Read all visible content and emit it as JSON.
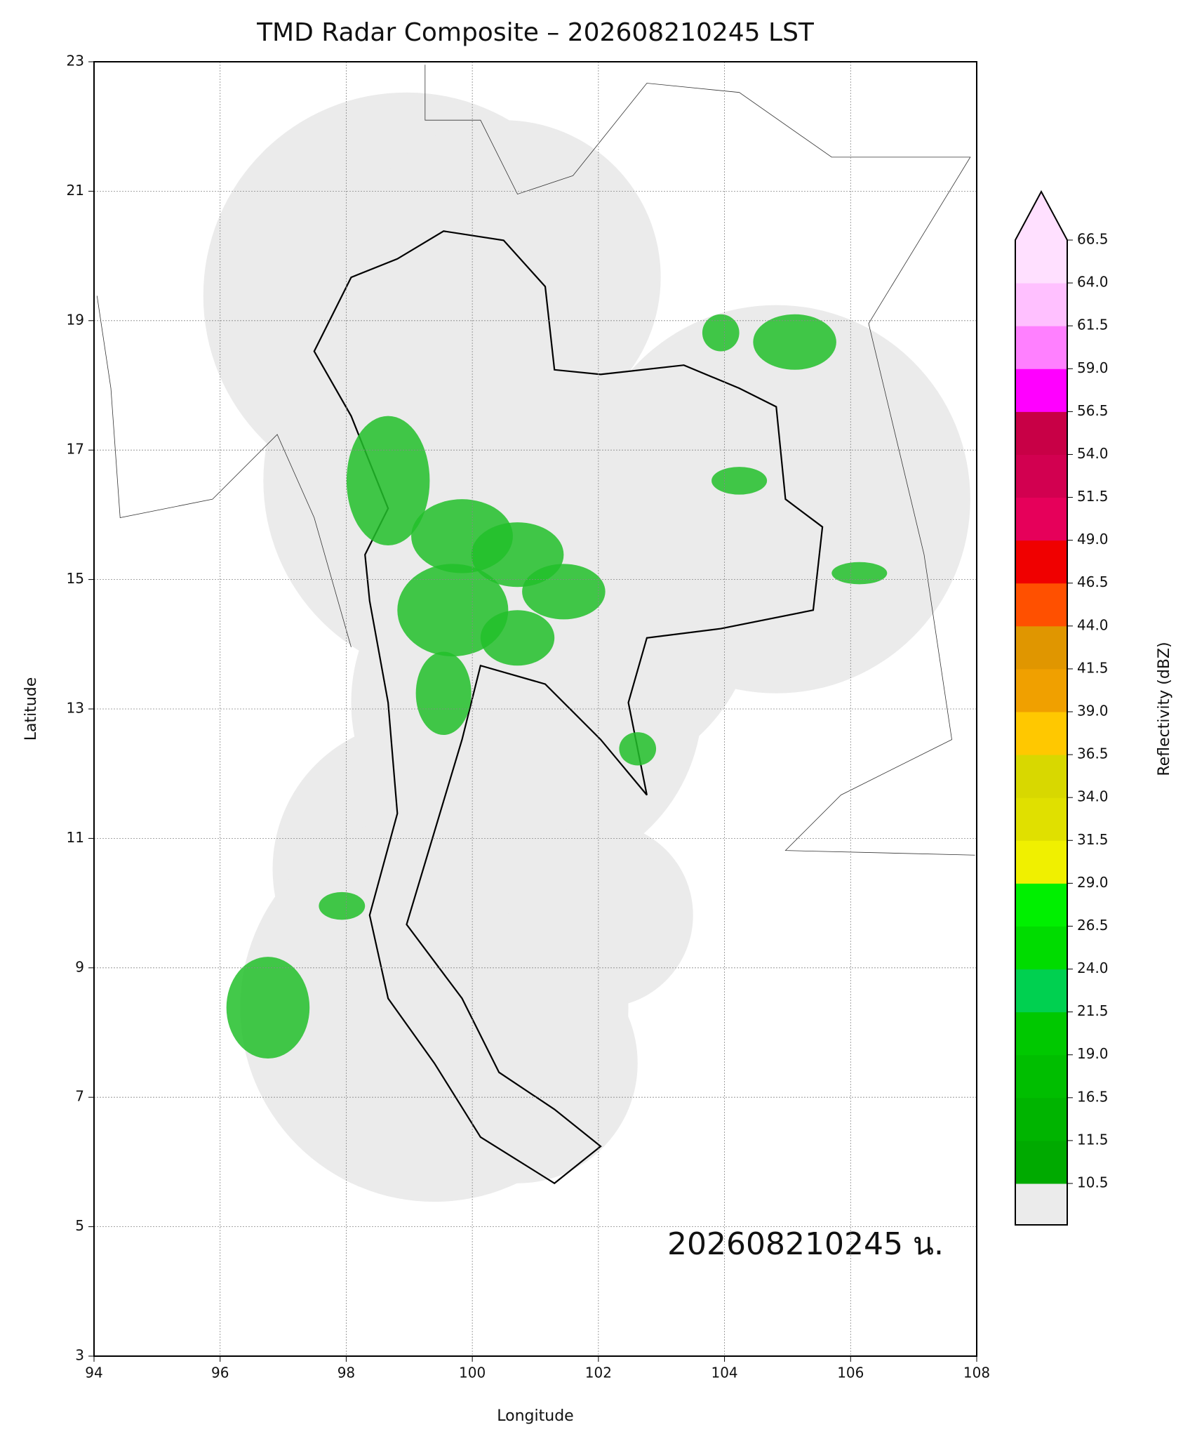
{
  "chart_data": {
    "type": "map",
    "title": "TMD Radar Composite – 202608210245 LST",
    "x_label": "Longitude",
    "y_label": "Latitude",
    "xlim": [
      94,
      108
    ],
    "ylim": [
      3,
      23
    ],
    "xticks": [
      94,
      96,
      98,
      100,
      102,
      104,
      106,
      108
    ],
    "yticks": [
      3,
      5,
      7,
      9,
      11,
      13,
      15,
      17,
      19,
      21,
      23
    ],
    "grid": true,
    "annotation": "202608210245 น.",
    "colorbar": {
      "label": "Reflectivity (dBZ)",
      "ticks": [
        10.5,
        {
          "value": 11.5,
          "label": "11.5"
        },
        16.5,
        {
          "value": 19,
          "label": "19.0"
        },
        21.5,
        {
          "value": 24,
          "label": "24.0"
        },
        26.5,
        {
          "value": 29,
          "label": "29.0"
        },
        31.5,
        {
          "value": 34,
          "label": "34.0"
        },
        36.5,
        {
          "value": 39,
          "label": "39.0"
        },
        41.5,
        {
          "value": 44,
          "label": "44.0"
        },
        46.5,
        {
          "value": 49,
          "label": "49.0"
        },
        51.5,
        {
          "value": 54,
          "label": "54.0"
        },
        56.5,
        {
          "value": 59,
          "label": "59.0"
        },
        61.5,
        {
          "value": 64,
          "label": "64.0"
        },
        66.5
      ],
      "colors": [
        "#00aa00",
        "#00b400",
        "#00be00",
        "#00c800",
        "#00d050",
        "#00dc00",
        "#00f000",
        "#f0f000",
        "#e0e000",
        "#d8d800",
        "#ffc800",
        "#f0a000",
        "#e09600",
        "#ff5000",
        "#f00000",
        "#e6005a",
        "#d20050",
        "#c80046",
        "#ff00ff",
        "#ff80ff",
        "#ffc0ff",
        "#ffe0ff"
      ],
      "under_color": "#ebebeb",
      "over_color": "#ffe0ff"
    }
  }
}
